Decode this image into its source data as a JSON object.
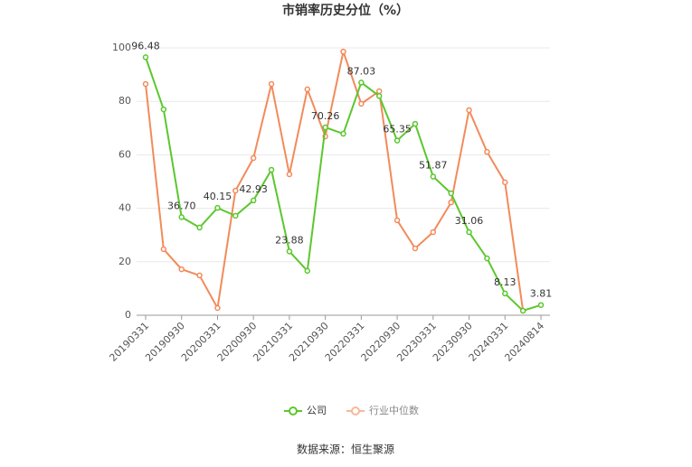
{
  "chart_data": {
    "type": "line",
    "title": "市销率历史分位（%）",
    "x": [
      "20190331",
      "20190630",
      "20190930",
      "20191231",
      "20200331",
      "20200630",
      "20200930",
      "20201231",
      "20210331",
      "20210630",
      "20210930",
      "20211231",
      "20220331",
      "20220630",
      "20220930",
      "20221231",
      "20230331",
      "20230630",
      "20230930",
      "20231231",
      "20240331",
      "20240630",
      "20240814"
    ],
    "xtick_labels": [
      "20190331",
      null,
      "20190930",
      null,
      "20200331",
      null,
      "20200930",
      null,
      "20210331",
      null,
      "20210930",
      null,
      "20220331",
      null,
      "20220930",
      null,
      "20230331",
      null,
      "20230930",
      null,
      "20240331",
      null,
      "20240814"
    ],
    "series": [
      {
        "name": "公司",
        "color": "#5cc72e",
        "values": [
          96.48,
          77,
          36.7,
          32.8,
          40.15,
          37.2,
          42.93,
          54.4,
          23.88,
          16.6,
          70.26,
          67.9,
          87.03,
          82,
          65.35,
          71.6,
          51.87,
          45.6,
          31.06,
          21.3,
          8.13,
          1.7,
          3.81
        ],
        "value_labels": [
          "96.48",
          null,
          "36.70",
          null,
          "40.15",
          null,
          "42.93",
          null,
          "23.88",
          null,
          "70.26",
          null,
          "87.03",
          null,
          "65.35",
          null,
          "51.87",
          null,
          "31.06",
          null,
          "8.13",
          null,
          "3.81"
        ]
      },
      {
        "name": "行业中位数",
        "color": "#f28b5b",
        "values": [
          86.5,
          24.7,
          17.2,
          14.9,
          2.7,
          46.6,
          58.8,
          86.5,
          52.7,
          84.5,
          66.9,
          98.6,
          79.1,
          83.8,
          35.5,
          25,
          31.1,
          42.2,
          76.7,
          61.1,
          49.7,
          1.7,
          null
        ]
      }
    ],
    "ylim": [
      0,
      100
    ],
    "yticks": [
      0,
      20,
      40,
      60,
      80,
      100
    ],
    "grid": true,
    "source": "数据来源：恒生聚源"
  }
}
